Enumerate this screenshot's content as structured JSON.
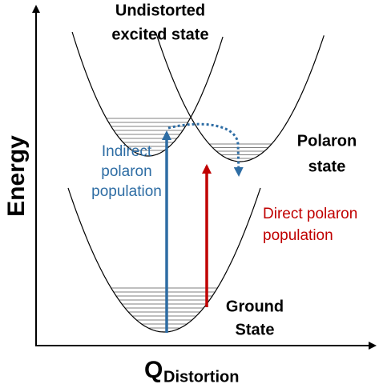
{
  "axes": {
    "y_label": "Energy",
    "x_label": "Q",
    "x_label_subscript": "Distortion"
  },
  "labels": {
    "excited": [
      "Undistorted",
      "excited state"
    ],
    "polaron": [
      "Polaron",
      "state"
    ],
    "indirect": [
      "Indirect",
      "polaron",
      "population"
    ],
    "direct": [
      "Direct polaron",
      "population"
    ],
    "ground": [
      "Ground",
      "State"
    ]
  }
}
